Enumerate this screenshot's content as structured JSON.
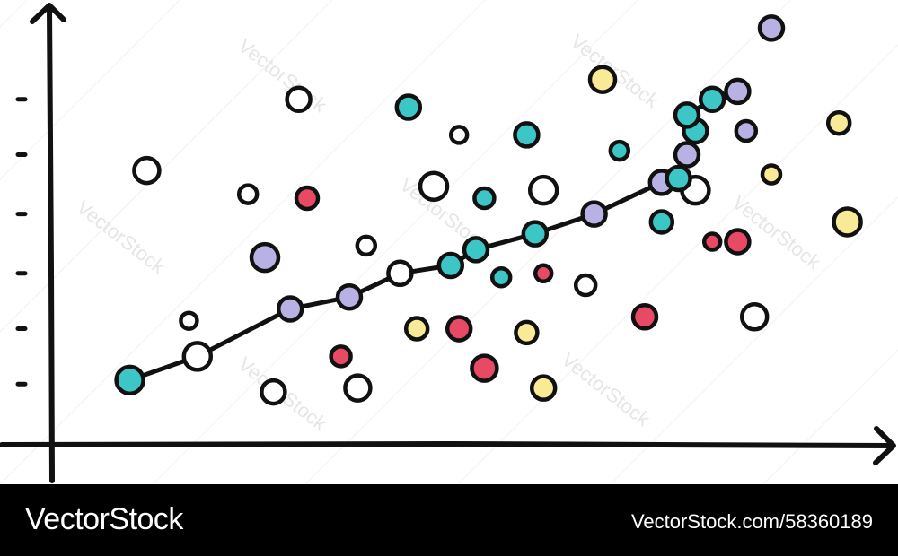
{
  "colors": {
    "teal": "#3cc6c6",
    "lavender": "#b8b2e4",
    "white": "#ffffff",
    "red": "#e84a66",
    "yellow": "#f8ea96",
    "ink": "#111111",
    "footer": "#000000"
  },
  "chart_data": {
    "type": "scatter",
    "title": "",
    "xlabel": "",
    "ylabel": "",
    "xlim": [
      0,
      100
    ],
    "ylim": [
      0,
      100
    ],
    "grid": false,
    "legend": "none",
    "y_ticks": [
      14,
      28,
      42,
      57,
      72,
      86
    ],
    "trend_line": [
      {
        "x": 9,
        "y": 15,
        "fill": "teal"
      },
      {
        "x": 17,
        "y": 21,
        "fill": "white"
      },
      {
        "x": 28,
        "y": 33,
        "fill": "lavender"
      },
      {
        "x": 35,
        "y": 36,
        "fill": "lavender"
      },
      {
        "x": 41,
        "y": 42,
        "fill": "white"
      },
      {
        "x": 47,
        "y": 44,
        "fill": "teal"
      },
      {
        "x": 50,
        "y": 48,
        "fill": "teal"
      },
      {
        "x": 57,
        "y": 52,
        "fill": "teal"
      },
      {
        "x": 64,
        "y": 57,
        "fill": "lavender"
      },
      {
        "x": 72,
        "y": 65,
        "fill": "lavender"
      },
      {
        "x": 74,
        "y": 66,
        "fill": "teal"
      },
      {
        "x": 75,
        "y": 72,
        "fill": "lavender"
      },
      {
        "x": 76,
        "y": 78,
        "fill": "teal"
      },
      {
        "x": 75,
        "y": 82,
        "fill": "teal"
      },
      {
        "x": 78,
        "y": 86,
        "fill": "teal"
      },
      {
        "x": 81,
        "y": 88,
        "fill": "lavender"
      }
    ],
    "scatter_points": [
      {
        "x": 11,
        "y": 68,
        "fill": "white"
      },
      {
        "x": 23,
        "y": 62,
        "fill": "white"
      },
      {
        "x": 29,
        "y": 86,
        "fill": "white"
      },
      {
        "x": 30,
        "y": 61,
        "fill": "red"
      },
      {
        "x": 25,
        "y": 46,
        "fill": "lavender"
      },
      {
        "x": 16,
        "y": 30,
        "fill": "white"
      },
      {
        "x": 26,
        "y": 12,
        "fill": "white"
      },
      {
        "x": 34,
        "y": 21,
        "fill": "red"
      },
      {
        "x": 36,
        "y": 13,
        "fill": "white"
      },
      {
        "x": 37,
        "y": 49,
        "fill": "white"
      },
      {
        "x": 42,
        "y": 84,
        "fill": "teal"
      },
      {
        "x": 43,
        "y": 28,
        "fill": "yellow"
      },
      {
        "x": 45,
        "y": 64,
        "fill": "white"
      },
      {
        "x": 48,
        "y": 77,
        "fill": "white"
      },
      {
        "x": 48,
        "y": 28,
        "fill": "red"
      },
      {
        "x": 51,
        "y": 61,
        "fill": "teal"
      },
      {
        "x": 51,
        "y": 18,
        "fill": "red"
      },
      {
        "x": 53,
        "y": 41,
        "fill": "teal"
      },
      {
        "x": 56,
        "y": 77,
        "fill": "teal"
      },
      {
        "x": 56,
        "y": 27,
        "fill": "yellow"
      },
      {
        "x": 58,
        "y": 63,
        "fill": "white"
      },
      {
        "x": 58,
        "y": 42,
        "fill": "red"
      },
      {
        "x": 58,
        "y": 13,
        "fill": "yellow"
      },
      {
        "x": 63,
        "y": 39,
        "fill": "white"
      },
      {
        "x": 65,
        "y": 91,
        "fill": "yellow"
      },
      {
        "x": 67,
        "y": 73,
        "fill": "teal"
      },
      {
        "x": 70,
        "y": 31,
        "fill": "red"
      },
      {
        "x": 72,
        "y": 55,
        "fill": "teal"
      },
      {
        "x": 76,
        "y": 63,
        "fill": "white"
      },
      {
        "x": 78,
        "y": 50,
        "fill": "red"
      },
      {
        "x": 81,
        "y": 50,
        "fill": "red"
      },
      {
        "x": 82,
        "y": 78,
        "fill": "lavender"
      },
      {
        "x": 83,
        "y": 31,
        "fill": "white"
      },
      {
        "x": 85,
        "y": 67,
        "fill": "yellow"
      },
      {
        "x": 85,
        "y": 104,
        "fill": "lavender"
      },
      {
        "x": 93,
        "y": 80,
        "fill": "yellow"
      },
      {
        "x": 94,
        "y": 55,
        "fill": "yellow"
      }
    ]
  },
  "watermark": {
    "text": "VectorStock"
  },
  "footer": {
    "brand": "VectorStock",
    "image_id": "VectorStock.com/58360189"
  }
}
